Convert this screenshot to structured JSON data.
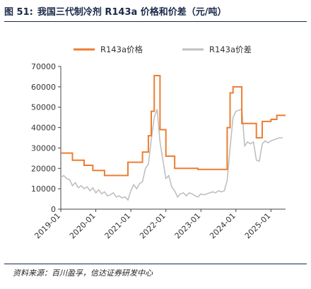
{
  "figure": {
    "number": "图 51:",
    "title": "我国三代制冷剂 R143a 价格和价差（元/吨）",
    "source": "资料来源：百川盈孚，信达证券研发中心"
  },
  "colors": {
    "price": "#ED7D31",
    "spread": "#BFBFBF",
    "title": "#1a2a4a"
  },
  "chart_data": {
    "type": "line",
    "title": "",
    "xlabel": "",
    "ylabel": "",
    "ylim": [
      0,
      70000
    ],
    "yticks": [
      0,
      10000,
      20000,
      30000,
      40000,
      50000,
      60000,
      70000
    ],
    "ytick_labels": [
      "0",
      "10000",
      "20000",
      "30000",
      "40000",
      "50000",
      "60000",
      "70000"
    ],
    "xlim": [
      "2019-01",
      "2025-06"
    ],
    "xtick_labels": [
      "2019-01",
      "2020-01",
      "2021-01",
      "2022-01",
      "2023-01",
      "2024-01",
      "2025-01"
    ],
    "grid": false,
    "legend": "top",
    "series": [
      {
        "name": "R143a价格",
        "color": "#ED7D31",
        "points": [
          [
            "2019-01",
            27500
          ],
          [
            "2019-05",
            27500
          ],
          [
            "2019-05",
            24000
          ],
          [
            "2019-09",
            24000
          ],
          [
            "2019-09",
            21500
          ],
          [
            "2019-12",
            21500
          ],
          [
            "2019-12",
            19000
          ],
          [
            "2020-04",
            19000
          ],
          [
            "2020-04",
            16500
          ],
          [
            "2020-12",
            16500
          ],
          [
            "2020-12",
            23000
          ],
          [
            "2021-05",
            23000
          ],
          [
            "2021-05",
            28000
          ],
          [
            "2021-07",
            28000
          ],
          [
            "2021-07",
            36000
          ],
          [
            "2021-08",
            36000
          ],
          [
            "2021-08",
            48000
          ],
          [
            "2021-09",
            48000
          ],
          [
            "2021-09",
            65500
          ],
          [
            "2021-11",
            65500
          ],
          [
            "2021-11",
            39000
          ],
          [
            "2022-01",
            39000
          ],
          [
            "2022-01",
            26000
          ],
          [
            "2022-04",
            26000
          ],
          [
            "2022-04",
            20000
          ],
          [
            "2022-12",
            20000
          ],
          [
            "2022-12",
            19500
          ],
          [
            "2023-10",
            19500
          ],
          [
            "2023-10",
            40000
          ],
          [
            "2023-11",
            40000
          ],
          [
            "2023-11",
            57000
          ],
          [
            "2023-12",
            57000
          ],
          [
            "2023-12",
            60000
          ],
          [
            "2024-03",
            60000
          ],
          [
            "2024-03",
            42000
          ],
          [
            "2024-08",
            42000
          ],
          [
            "2024-08",
            35000
          ],
          [
            "2024-10",
            35000
          ],
          [
            "2024-10",
            43000
          ],
          [
            "2025-01",
            43000
          ],
          [
            "2025-01",
            44000
          ],
          [
            "2025-03",
            44000
          ],
          [
            "2025-03",
            46000
          ],
          [
            "2025-06",
            46000
          ]
        ]
      },
      {
        "name": "R143a价差",
        "color": "#BFBFBF",
        "points": [
          [
            "2019-01",
            15500
          ],
          [
            "2019-02",
            16500
          ],
          [
            "2019-03",
            15000
          ],
          [
            "2019-04",
            14500
          ],
          [
            "2019-05",
            11500
          ],
          [
            "2019-06",
            13000
          ],
          [
            "2019-07",
            10500
          ],
          [
            "2019-08",
            11500
          ],
          [
            "2019-09",
            10000
          ],
          [
            "2019-10",
            11000
          ],
          [
            "2019-11",
            9000
          ],
          [
            "2019-12",
            10500
          ],
          [
            "2020-01",
            8000
          ],
          [
            "2020-02",
            9500
          ],
          [
            "2020-03",
            7500
          ],
          [
            "2020-04",
            8500
          ],
          [
            "2020-05",
            6500
          ],
          [
            "2020-06",
            7000
          ],
          [
            "2020-07",
            8000
          ],
          [
            "2020-08",
            6000
          ],
          [
            "2020-09",
            6500
          ],
          [
            "2020-10",
            5500
          ],
          [
            "2020-11",
            6000
          ],
          [
            "2020-12",
            4500
          ],
          [
            "2021-01",
            9000
          ],
          [
            "2021-02",
            12000
          ],
          [
            "2021-03",
            10000
          ],
          [
            "2021-04",
            12500
          ],
          [
            "2021-05",
            13500
          ],
          [
            "2021-06",
            20000
          ],
          [
            "2021-07",
            22000
          ],
          [
            "2021-08",
            34000
          ],
          [
            "2021-09",
            45000
          ],
          [
            "2021-10",
            49000
          ],
          [
            "2021-11",
            33000
          ],
          [
            "2021-12",
            24000
          ],
          [
            "2022-01",
            15000
          ],
          [
            "2022-02",
            16500
          ],
          [
            "2022-03",
            11000
          ],
          [
            "2022-04",
            9000
          ],
          [
            "2022-05",
            6000
          ],
          [
            "2022-06",
            7500
          ],
          [
            "2022-07",
            8000
          ],
          [
            "2022-08",
            6500
          ],
          [
            "2022-09",
            8000
          ],
          [
            "2022-10",
            7500
          ],
          [
            "2022-11",
            6500
          ],
          [
            "2022-12",
            6000
          ],
          [
            "2023-01",
            7500
          ],
          [
            "2023-02",
            7000
          ],
          [
            "2023-03",
            7500
          ],
          [
            "2023-04",
            8000
          ],
          [
            "2023-05",
            8500
          ],
          [
            "2023-06",
            8000
          ],
          [
            "2023-07",
            9000
          ],
          [
            "2023-08",
            8500
          ],
          [
            "2023-09",
            9000
          ],
          [
            "2023-10",
            14000
          ],
          [
            "2023-11",
            30000
          ],
          [
            "2023-12",
            45000
          ],
          [
            "2024-01",
            48000
          ],
          [
            "2024-02",
            48500
          ],
          [
            "2024-03",
            49000
          ],
          [
            "2024-04",
            31000
          ],
          [
            "2024-05",
            33000
          ],
          [
            "2024-06",
            32000
          ],
          [
            "2024-07",
            33000
          ],
          [
            "2024-08",
            24000
          ],
          [
            "2024-09",
            23500
          ],
          [
            "2024-10",
            32000
          ],
          [
            "2024-11",
            33500
          ],
          [
            "2024-12",
            32500
          ],
          [
            "2025-01",
            33500
          ],
          [
            "2025-02",
            34000
          ],
          [
            "2025-03",
            34500
          ],
          [
            "2025-04",
            35000
          ],
          [
            "2025-05",
            35000
          ]
        ]
      }
    ]
  }
}
